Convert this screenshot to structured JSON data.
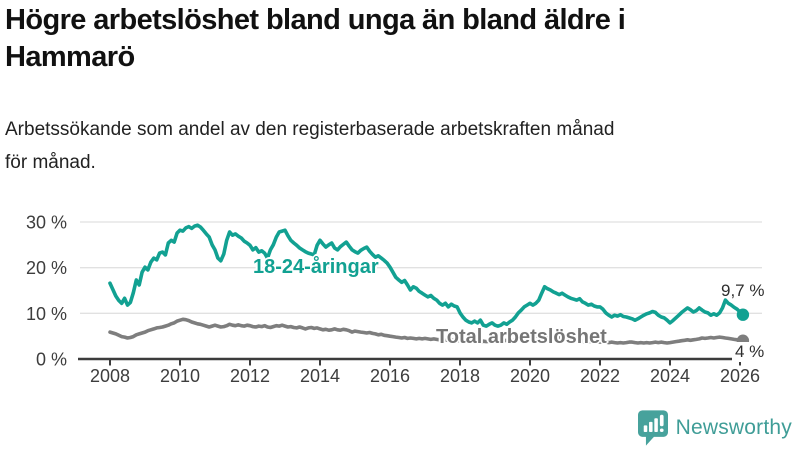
{
  "header": {
    "title": "Högre arbetslöshet bland unga än bland äldre i Hammarö",
    "title_lines": [
      "Högre arbetslöshet bland unga än bland äldre i",
      "Hammarö"
    ],
    "subtitle": "Arbetssökande som andel av den registerbaserade arbetskraften månad för månad.",
    "subtitle_lines": [
      "Arbetssökande som andel av den registerbaserade arbetskraften månad",
      "för månad."
    ]
  },
  "colors": {
    "accent_teal": "#12A192",
    "line_gray": "#7E7E7E",
    "label_gray": "#767676",
    "axis": "#3C3C3C",
    "grid": "#E1E1E1",
    "tick_text": "#3D3D3D",
    "value_text": "#2E2E2E",
    "logo_teal": "#47A29C",
    "logo_text_teal": "#3F9D97"
  },
  "chart_data": {
    "type": "line",
    "title": "Högre arbetslöshet bland unga än bland äldre i Hammarö",
    "xlabel": "",
    "ylabel": "",
    "x_frequency": "monthly",
    "x_start": "2008-01",
    "x_end": "2026-02",
    "x_tick_labels": [
      "2008",
      "2010",
      "2012",
      "2014",
      "2016",
      "2018",
      "2020",
      "2022",
      "2024",
      "2026"
    ],
    "x_tick_years": [
      2008,
      2010,
      2012,
      2014,
      2016,
      2018,
      2020,
      2022,
      2024,
      2026
    ],
    "y_ticks": [
      0,
      10,
      20,
      30
    ],
    "y_tick_labels": [
      "0 %",
      "10 %",
      "20 %",
      "30 %"
    ],
    "ylim": [
      0,
      32.5
    ],
    "grid": true,
    "legend_position": "inline-labels",
    "series": [
      {
        "name": "18-24-åringar",
        "color": "#12A192",
        "end_label": "9,7 %",
        "values": [
          16.6,
          15.2,
          13.8,
          12.8,
          12.2,
          13.3,
          11.8,
          12.4,
          14.5,
          17.3,
          16.2,
          19.0,
          20.1,
          19.5,
          21.2,
          22.1,
          21.7,
          23.2,
          23.4,
          22.8,
          25.4,
          26.0,
          25.6,
          27.6,
          28.2,
          28.0,
          28.7,
          29.0,
          28.6,
          29.1,
          29.3,
          28.9,
          28.2,
          27.4,
          26.7,
          25.0,
          23.9,
          22.1,
          21.5,
          23.0,
          26.0,
          27.8,
          27.1,
          27.4,
          26.9,
          26.5,
          25.8,
          25.4,
          24.9,
          23.9,
          24.4,
          23.4,
          23.7,
          23.2,
          22.1,
          23.9,
          25.0,
          26.7,
          27.8,
          28.0,
          28.2,
          27.0,
          26.0,
          25.4,
          24.9,
          24.3,
          23.9,
          23.5,
          23.2,
          23.0,
          22.8,
          24.9,
          26.0,
          25.2,
          24.5,
          25.0,
          25.4,
          24.3,
          23.9,
          24.6,
          25.1,
          25.6,
          24.7,
          23.9,
          23.5,
          23.2,
          23.8,
          24.2,
          24.5,
          23.6,
          22.9,
          22.3,
          22.6,
          22.1,
          21.6,
          21.0,
          20.1,
          19.0,
          17.9,
          17.3,
          16.8,
          17.2,
          16.2,
          15.1,
          15.8,
          15.5,
          14.8,
          14.4,
          14.0,
          13.6,
          13.9,
          13.3,
          12.9,
          12.2,
          11.8,
          12.2,
          11.4,
          12.0,
          11.6,
          11.4,
          10.1,
          9.2,
          8.5,
          8.1,
          7.9,
          8.3,
          7.9,
          8.5,
          7.4,
          7.2,
          7.6,
          7.9,
          7.4,
          7.2,
          7.4,
          7.9,
          7.6,
          8.1,
          8.5,
          9.2,
          10.1,
          10.7,
          11.4,
          11.8,
          12.2,
          11.8,
          12.2,
          12.9,
          14.4,
          15.8,
          15.4,
          15.1,
          14.7,
          14.4,
          14.1,
          14.4,
          14.0,
          13.6,
          13.3,
          13.1,
          12.9,
          13.2,
          12.5,
          12.2,
          11.8,
          12.0,
          11.6,
          11.4,
          11.4,
          10.9,
          10.1,
          9.6,
          9.2,
          9.6,
          9.4,
          9.7,
          9.3,
          9.2,
          9.0,
          8.8,
          8.5,
          8.8,
          9.2,
          9.6,
          9.9,
          10.1,
          10.4,
          10.2,
          9.6,
          9.2,
          9.0,
          8.5,
          7.9,
          8.4,
          9.0,
          9.6,
          10.2,
          10.7,
          11.2,
          10.8,
          10.3,
          10.6,
          11.2,
          10.7,
          10.3,
          10.1,
          9.6,
          9.9,
          9.6,
          10.1,
          11.2,
          12.9,
          12.2,
          11.8,
          11.3,
          10.9,
          10.3,
          9.7
        ]
      },
      {
        "name": "Total arbetslöshet",
        "color": "#7E7E7E",
        "end_label": "4 %",
        "values": [
          5.9,
          5.7,
          5.5,
          5.2,
          4.9,
          4.8,
          4.6,
          4.7,
          4.9,
          5.3,
          5.5,
          5.7,
          5.9,
          6.2,
          6.4,
          6.6,
          6.8,
          6.9,
          7.0,
          7.2,
          7.4,
          7.7,
          7.9,
          8.3,
          8.5,
          8.7,
          8.6,
          8.4,
          8.1,
          7.9,
          7.7,
          7.6,
          7.4,
          7.2,
          7.0,
          7.2,
          7.4,
          7.2,
          7.0,
          7.1,
          7.3,
          7.6,
          7.4,
          7.3,
          7.5,
          7.3,
          7.2,
          7.4,
          7.3,
          7.1,
          7.0,
          7.2,
          7.1,
          7.3,
          7.0,
          6.9,
          7.1,
          7.3,
          7.2,
          7.4,
          7.2,
          7.0,
          7.1,
          6.9,
          6.8,
          7.0,
          6.8,
          6.6,
          6.8,
          6.9,
          6.7,
          6.8,
          6.6,
          6.4,
          6.5,
          6.3,
          6.4,
          6.6,
          6.4,
          6.3,
          6.5,
          6.4,
          6.2,
          5.9,
          6.1,
          6.0,
          5.9,
          5.8,
          5.7,
          5.8,
          5.6,
          5.5,
          5.3,
          5.4,
          5.2,
          5.1,
          5.0,
          4.9,
          4.8,
          4.7,
          4.6,
          4.7,
          4.5,
          4.6,
          4.5,
          4.4,
          4.5,
          4.4,
          4.5,
          4.4,
          4.3,
          4.4,
          4.3,
          4.2,
          4.3,
          4.2,
          4.1,
          4.2,
          4.1,
          4.0,
          4.1,
          4.0,
          4.1,
          4.0,
          3.9,
          4.0,
          3.9,
          3.8,
          3.9,
          3.8,
          3.9,
          4.0,
          3.9,
          4.0,
          4.1,
          4.0,
          4.1,
          4.2,
          4.1,
          4.2,
          4.3,
          4.4,
          4.5,
          4.6,
          4.7,
          4.8,
          5.0,
          5.2,
          5.3,
          5.2,
          5.1,
          5.0,
          4.9,
          4.8,
          4.7,
          4.6,
          4.5,
          4.4,
          4.3,
          4.2,
          4.1,
          4.0,
          3.9,
          3.8,
          3.9,
          3.8,
          3.7,
          3.8,
          3.7,
          3.8,
          3.7,
          3.6,
          3.7,
          3.6,
          3.5,
          3.6,
          3.5,
          3.6,
          3.7,
          3.7,
          3.6,
          3.5,
          3.6,
          3.5,
          3.6,
          3.5,
          3.6,
          3.7,
          3.6,
          3.7,
          3.6,
          3.5,
          3.6,
          3.7,
          3.8,
          3.9,
          4.0,
          4.1,
          4.2,
          4.1,
          4.2,
          4.3,
          4.4,
          4.6,
          4.5,
          4.6,
          4.7,
          4.6,
          4.7,
          4.8,
          4.7,
          4.6,
          4.5,
          4.4,
          4.3,
          4.2,
          4.1,
          4.0
        ]
      }
    ],
    "end_labels": {
      "youth": "9,7 %",
      "total": "4 %"
    },
    "series_labels": {
      "youth": "18-24-åringar",
      "total": "Total arbetslöshet"
    }
  },
  "footer": {
    "brand": "Newsworthy"
  }
}
